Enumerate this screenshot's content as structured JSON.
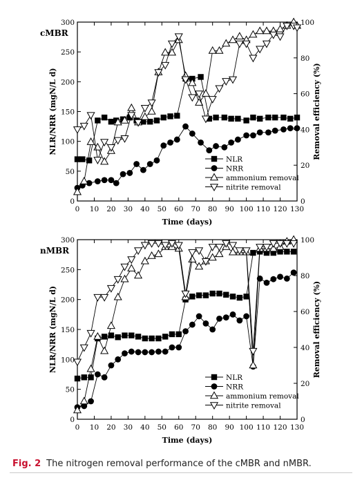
{
  "caption": {
    "fig_label": "Fig. 2",
    "text": "The nitrogen removal performance of the cMBR and nMBR."
  },
  "chart_data": [
    {
      "type": "line",
      "panel_label": "cMBR",
      "xlabel": "Time (days)",
      "ylabel_left": "NLR/NRR (mgN/L d)",
      "ylabel_right": "Removal efficiency (%)",
      "xlim": [
        0,
        130
      ],
      "ylim_left": [
        0,
        300
      ],
      "ylim_right": [
        0,
        100
      ],
      "x_ticks": [
        0,
        10,
        20,
        30,
        40,
        50,
        60,
        70,
        80,
        90,
        100,
        110,
        120,
        130
      ],
      "y_ticks_left": [
        0,
        50,
        100,
        150,
        200,
        250,
        300
      ],
      "y_ticks_right": [
        0,
        20,
        40,
        60,
        80,
        100
      ],
      "legend_position": "lower-center",
      "series": [
        {
          "name": "NLR",
          "marker": "filled-square",
          "axis": "left",
          "x": [
            0,
            3,
            7,
            12,
            16,
            20,
            23,
            27,
            31,
            35,
            39,
            43,
            47,
            51,
            55,
            59,
            64,
            68,
            73,
            78,
            82,
            87,
            91,
            95,
            100,
            104,
            108,
            113,
            117,
            122,
            126,
            130
          ],
          "y": [
            70,
            70,
            68,
            135,
            140,
            133,
            135,
            137,
            140,
            135,
            133,
            133,
            135,
            140,
            142,
            143,
            205,
            205,
            208,
            138,
            140,
            140,
            138,
            138,
            135,
            140,
            138,
            140,
            140,
            140,
            138,
            140
          ]
        },
        {
          "name": "NRR",
          "marker": "filled-circle",
          "axis": "left",
          "x": [
            0,
            3,
            7,
            12,
            16,
            20,
            23,
            27,
            31,
            35,
            39,
            43,
            47,
            51,
            55,
            59,
            64,
            68,
            73,
            78,
            82,
            87,
            91,
            95,
            100,
            104,
            108,
            113,
            117,
            122,
            126,
            130
          ],
          "y": [
            22,
            26,
            30,
            33,
            35,
            35,
            30,
            45,
            47,
            62,
            52,
            62,
            68,
            93,
            98,
            103,
            125,
            113,
            98,
            85,
            92,
            90,
            98,
            103,
            110,
            110,
            115,
            115,
            118,
            120,
            122,
            122
          ]
        },
        {
          "name": "ammonium removal",
          "marker": "open-triangle-up",
          "axis": "right",
          "x": [
            0,
            4,
            8,
            12,
            16,
            20,
            24,
            28,
            32,
            36,
            40,
            44,
            48,
            52,
            56,
            60,
            64,
            68,
            72,
            76,
            80,
            84,
            88,
            92,
            96,
            100,
            104,
            108,
            112,
            116,
            120,
            124,
            128,
            130
          ],
          "y": [
            5,
            11,
            33,
            30,
            22,
            28,
            44,
            45,
            52,
            44,
            47,
            50,
            72,
            83,
            83,
            90,
            70,
            66,
            55,
            60,
            84,
            84,
            88,
            90,
            92,
            90,
            93,
            95,
            95,
            95,
            96,
            98,
            100,
            98
          ]
        },
        {
          "name": "nitrite removal",
          "marker": "open-triangle-down",
          "axis": "right",
          "x": [
            0,
            4,
            8,
            12,
            16,
            20,
            24,
            28,
            32,
            36,
            40,
            44,
            48,
            52,
            56,
            60,
            64,
            68,
            72,
            76,
            80,
            84,
            88,
            92,
            96,
            100,
            104,
            108,
            112,
            116,
            120,
            124,
            128,
            130
          ],
          "y": [
            40,
            42,
            48,
            23,
            33,
            30,
            34,
            35,
            48,
            44,
            52,
            55,
            72,
            76,
            88,
            92,
            68,
            58,
            60,
            46,
            57,
            63,
            67,
            68,
            88,
            88,
            80,
            85,
            88,
            93,
            92,
            98,
            98,
            97
          ]
        }
      ]
    },
    {
      "type": "line",
      "panel_label": "nMBR",
      "xlabel": "Time (days)",
      "ylabel_left": "NLR/NRR (mgN/L d)",
      "ylabel_right": "Removal efficiency (%)",
      "xlim": [
        0,
        130
      ],
      "ylim_left": [
        0,
        300
      ],
      "ylim_right": [
        0,
        100
      ],
      "x_ticks": [
        0,
        10,
        20,
        30,
        40,
        50,
        60,
        70,
        80,
        90,
        100,
        110,
        120,
        130
      ],
      "y_ticks_left": [
        0,
        50,
        100,
        150,
        200,
        250,
        300
      ],
      "y_ticks_right": [
        0,
        20,
        40,
        60,
        80,
        100
      ],
      "legend_position": "lower-center",
      "series": [
        {
          "name": "NLR",
          "marker": "filled-square",
          "axis": "left",
          "x": [
            0,
            4,
            8,
            12,
            16,
            20,
            24,
            28,
            32,
            36,
            40,
            44,
            48,
            52,
            56,
            60,
            64,
            68,
            72,
            76,
            80,
            84,
            88,
            92,
            96,
            100,
            104,
            108,
            112,
            116,
            120,
            124,
            128
          ],
          "y": [
            68,
            70,
            70,
            135,
            138,
            140,
            137,
            140,
            140,
            138,
            135,
            135,
            135,
            138,
            142,
            142,
            200,
            205,
            207,
            207,
            210,
            210,
            208,
            205,
            203,
            205,
            278,
            280,
            278,
            278,
            280,
            280,
            280
          ]
        },
        {
          "name": "NRR",
          "marker": "filled-circle",
          "axis": "left",
          "x": [
            0,
            4,
            8,
            12,
            16,
            20,
            24,
            28,
            32,
            36,
            40,
            44,
            48,
            52,
            56,
            60,
            64,
            68,
            72,
            76,
            80,
            84,
            88,
            92,
            96,
            100,
            104,
            108,
            112,
            116,
            120,
            124,
            128
          ],
          "y": [
            20,
            22,
            30,
            75,
            70,
            90,
            100,
            110,
            113,
            112,
            112,
            112,
            113,
            113,
            120,
            120,
            147,
            158,
            172,
            160,
            150,
            168,
            170,
            175,
            165,
            172,
            88,
            235,
            228,
            234,
            238,
            235,
            245
          ]
        },
        {
          "name": "ammonium removal",
          "marker": "open-triangle-up",
          "axis": "right",
          "x": [
            0,
            4,
            8,
            12,
            16,
            20,
            24,
            28,
            32,
            36,
            40,
            44,
            48,
            52,
            56,
            60,
            64,
            68,
            72,
            76,
            80,
            84,
            88,
            92,
            96,
            100,
            104,
            108,
            112,
            116,
            120,
            124,
            128
          ],
          "y": [
            5,
            10,
            28,
            46,
            38,
            52,
            68,
            78,
            84,
            80,
            88,
            91,
            92,
            96,
            96,
            95,
            68,
            89,
            85,
            88,
            90,
            92,
            96,
            93,
            93,
            93,
            30,
            95,
            95,
            95,
            96,
            99,
            100
          ]
        },
        {
          "name": "nitrite removal",
          "marker": "open-triangle-down",
          "axis": "right",
          "x": [
            0,
            4,
            8,
            12,
            16,
            20,
            24,
            28,
            32,
            36,
            40,
            44,
            48,
            52,
            56,
            60,
            64,
            68,
            72,
            76,
            80,
            84,
            88,
            92,
            96,
            100,
            104,
            108,
            112,
            116,
            120,
            124,
            128
          ],
          "y": [
            32,
            40,
            48,
            68,
            68,
            73,
            78,
            85,
            89,
            94,
            97,
            98,
            98,
            97,
            98,
            97,
            70,
            93,
            94,
            88,
            96,
            96,
            98,
            97,
            94,
            94,
            38,
            96,
            96,
            98,
            98,
            98,
            98
          ]
        }
      ]
    }
  ]
}
